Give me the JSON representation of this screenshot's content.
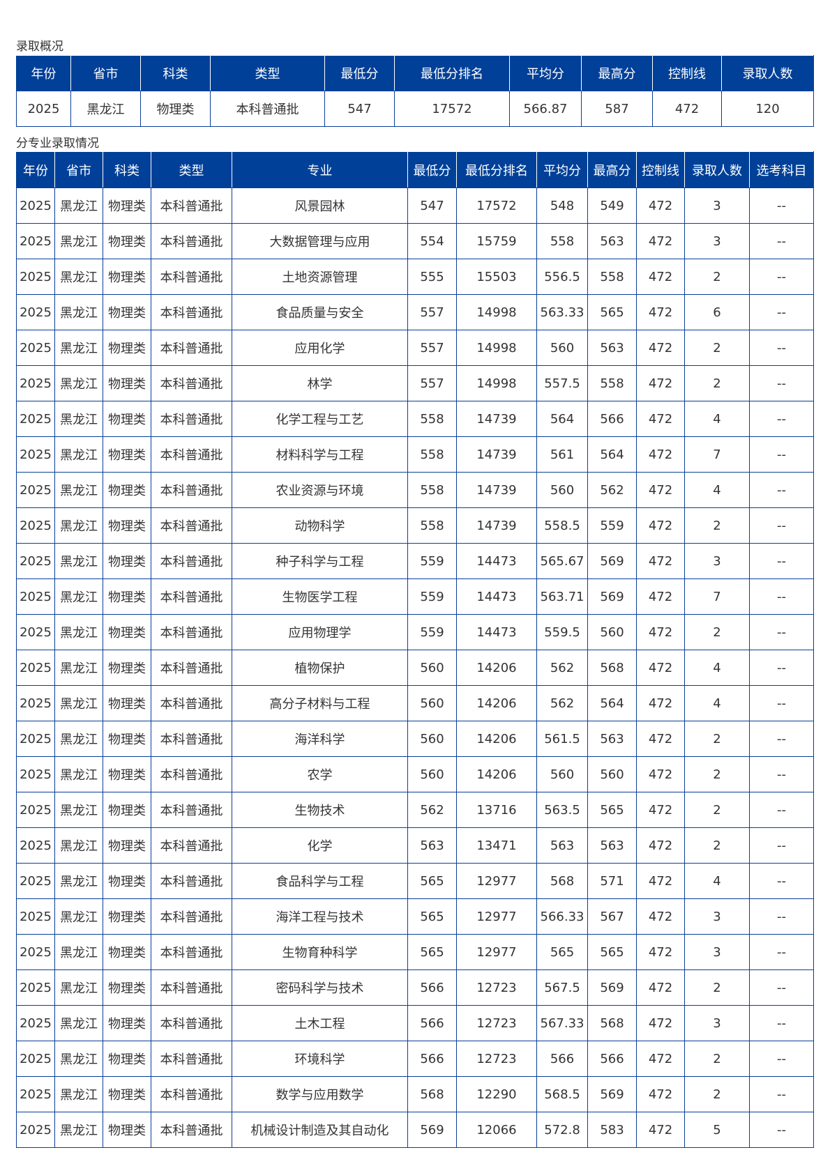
{
  "summary": {
    "title": "录取概况",
    "headers": [
      "年份",
      "省市",
      "科类",
      "类型",
      "最低分",
      "最低分排名",
      "平均分",
      "最高分",
      "控制线",
      "录取人数"
    ],
    "row": [
      "2025",
      "黑龙江",
      "物理类",
      "本科普通批",
      "547",
      "17572",
      "566.87",
      "587",
      "472",
      "120"
    ]
  },
  "majors": {
    "title": "分专业录取情况",
    "headers": [
      "年份",
      "省市",
      "科类",
      "类型",
      "专业",
      "最低分",
      "最低分排名",
      "平均分",
      "最高分",
      "控制线",
      "录取人数",
      "选考科目"
    ],
    "rows": [
      [
        "2025",
        "黑龙江",
        "物理类",
        "本科普通批",
        "风景园林",
        "547",
        "17572",
        "548",
        "549",
        "472",
        "3",
        "--"
      ],
      [
        "2025",
        "黑龙江",
        "物理类",
        "本科普通批",
        "大数据管理与应用",
        "554",
        "15759",
        "558",
        "563",
        "472",
        "3",
        "--"
      ],
      [
        "2025",
        "黑龙江",
        "物理类",
        "本科普通批",
        "土地资源管理",
        "555",
        "15503",
        "556.5",
        "558",
        "472",
        "2",
        "--"
      ],
      [
        "2025",
        "黑龙江",
        "物理类",
        "本科普通批",
        "食品质量与安全",
        "557",
        "14998",
        "563.33",
        "565",
        "472",
        "6",
        "--"
      ],
      [
        "2025",
        "黑龙江",
        "物理类",
        "本科普通批",
        "应用化学",
        "557",
        "14998",
        "560",
        "563",
        "472",
        "2",
        "--"
      ],
      [
        "2025",
        "黑龙江",
        "物理类",
        "本科普通批",
        "林学",
        "557",
        "14998",
        "557.5",
        "558",
        "472",
        "2",
        "--"
      ],
      [
        "2025",
        "黑龙江",
        "物理类",
        "本科普通批",
        "化学工程与工艺",
        "558",
        "14739",
        "564",
        "566",
        "472",
        "4",
        "--"
      ],
      [
        "2025",
        "黑龙江",
        "物理类",
        "本科普通批",
        "材料科学与工程",
        "558",
        "14739",
        "561",
        "564",
        "472",
        "7",
        "--"
      ],
      [
        "2025",
        "黑龙江",
        "物理类",
        "本科普通批",
        "农业资源与环境",
        "558",
        "14739",
        "560",
        "562",
        "472",
        "4",
        "--"
      ],
      [
        "2025",
        "黑龙江",
        "物理类",
        "本科普通批",
        "动物科学",
        "558",
        "14739",
        "558.5",
        "559",
        "472",
        "2",
        "--"
      ],
      [
        "2025",
        "黑龙江",
        "物理类",
        "本科普通批",
        "种子科学与工程",
        "559",
        "14473",
        "565.67",
        "569",
        "472",
        "3",
        "--"
      ],
      [
        "2025",
        "黑龙江",
        "物理类",
        "本科普通批",
        "生物医学工程",
        "559",
        "14473",
        "563.71",
        "569",
        "472",
        "7",
        "--"
      ],
      [
        "2025",
        "黑龙江",
        "物理类",
        "本科普通批",
        "应用物理学",
        "559",
        "14473",
        "559.5",
        "560",
        "472",
        "2",
        "--"
      ],
      [
        "2025",
        "黑龙江",
        "物理类",
        "本科普通批",
        "植物保护",
        "560",
        "14206",
        "562",
        "568",
        "472",
        "4",
        "--"
      ],
      [
        "2025",
        "黑龙江",
        "物理类",
        "本科普通批",
        "高分子材料与工程",
        "560",
        "14206",
        "562",
        "564",
        "472",
        "4",
        "--"
      ],
      [
        "2025",
        "黑龙江",
        "物理类",
        "本科普通批",
        "海洋科学",
        "560",
        "14206",
        "561.5",
        "563",
        "472",
        "2",
        "--"
      ],
      [
        "2025",
        "黑龙江",
        "物理类",
        "本科普通批",
        "农学",
        "560",
        "14206",
        "560",
        "560",
        "472",
        "2",
        "--"
      ],
      [
        "2025",
        "黑龙江",
        "物理类",
        "本科普通批",
        "生物技术",
        "562",
        "13716",
        "563.5",
        "565",
        "472",
        "2",
        "--"
      ],
      [
        "2025",
        "黑龙江",
        "物理类",
        "本科普通批",
        "化学",
        "563",
        "13471",
        "563",
        "563",
        "472",
        "2",
        "--"
      ],
      [
        "2025",
        "黑龙江",
        "物理类",
        "本科普通批",
        "食品科学与工程",
        "565",
        "12977",
        "568",
        "571",
        "472",
        "4",
        "--"
      ],
      [
        "2025",
        "黑龙江",
        "物理类",
        "本科普通批",
        "海洋工程与技术",
        "565",
        "12977",
        "566.33",
        "567",
        "472",
        "3",
        "--"
      ],
      [
        "2025",
        "黑龙江",
        "物理类",
        "本科普通批",
        "生物育种科学",
        "565",
        "12977",
        "565",
        "565",
        "472",
        "3",
        "--"
      ],
      [
        "2025",
        "黑龙江",
        "物理类",
        "本科普通批",
        "密码科学与技术",
        "566",
        "12723",
        "567.5",
        "569",
        "472",
        "2",
        "--"
      ],
      [
        "2025",
        "黑龙江",
        "物理类",
        "本科普通批",
        "土木工程",
        "566",
        "12723",
        "567.33",
        "568",
        "472",
        "3",
        "--"
      ],
      [
        "2025",
        "黑龙江",
        "物理类",
        "本科普通批",
        "环境科学",
        "566",
        "12723",
        "566",
        "566",
        "472",
        "2",
        "--"
      ],
      [
        "2025",
        "黑龙江",
        "物理类",
        "本科普通批",
        "数学与应用数学",
        "568",
        "12290",
        "568.5",
        "569",
        "472",
        "2",
        "--"
      ],
      [
        "2025",
        "黑龙江",
        "物理类",
        "本科普通批",
        "机械设计制造及其自动化",
        "569",
        "12066",
        "572.8",
        "583",
        "472",
        "5",
        "--"
      ]
    ]
  },
  "colors": {
    "header_bg": "#004098",
    "border": "#0a3d98"
  }
}
